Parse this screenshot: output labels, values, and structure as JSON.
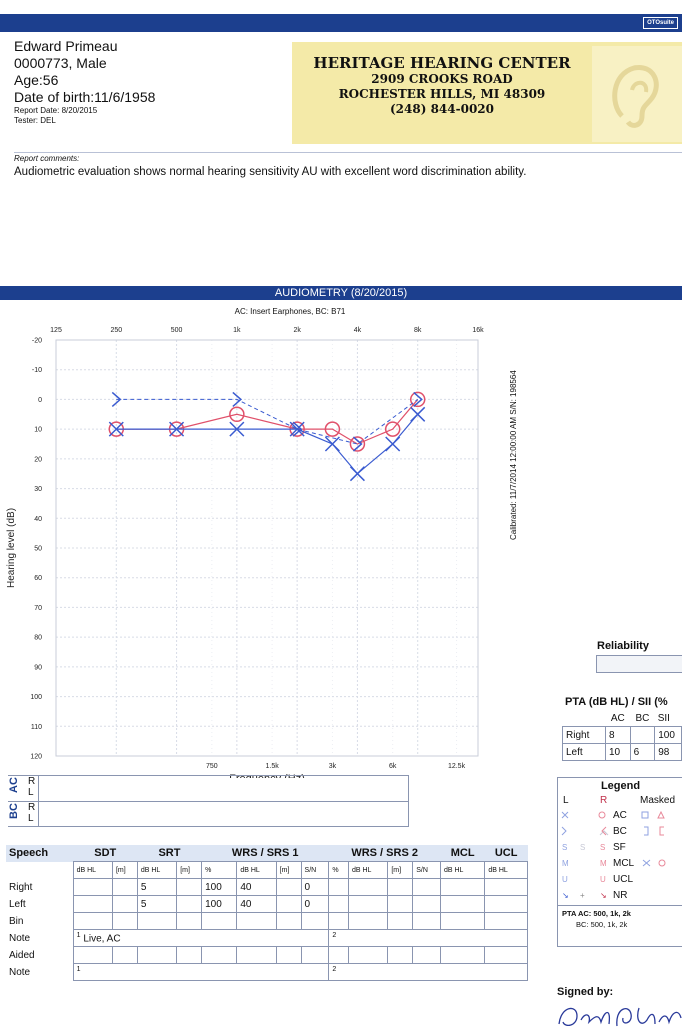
{
  "header": {
    "logo_text": "OTOsuite"
  },
  "patient": {
    "name": "Edward Primeau",
    "id_gender": "0000773, Male",
    "age": "Age:56",
    "dob": "Date of birth:11/6/1958",
    "report_date": "Report Date: 8/20/2015",
    "tester": "Tester: DEL"
  },
  "clinic": {
    "name": "HERITAGE HEARING CENTER",
    "street": "2909 CROOKS ROAD",
    "city": "ROCHESTER HILLS, MI 48309",
    "phone": "(248) 844-0020"
  },
  "comments": {
    "label": "Report comments:",
    "text": "Audiometric evaluation shows normal hearing sensitivity AU with excellent word discrimination ability."
  },
  "audiometry": {
    "title": "AUDIOMETRY  (8/20/2015)",
    "transducer": "AC: Insert Earphones, BC: B71",
    "calibrated": "Calibrated: 11/7/2014 12:00:00 AM  S/N: 198564"
  },
  "chart_data": {
    "type": "line",
    "xlabel": "Frequency (Hz)",
    "ylabel": "Hearing level (dB)",
    "x_ticks_top": [
      "125",
      "250",
      "500",
      "1k",
      "2k",
      "4k",
      "8k",
      "16k"
    ],
    "x_ticks_bottom": [
      "750",
      "1.5k",
      "3k",
      "6k",
      "12.5k"
    ],
    "y_ticks": [
      "-20",
      "-10",
      "0",
      "10",
      "20",
      "30",
      "40",
      "50",
      "60",
      "70",
      "80",
      "90",
      "100",
      "110",
      "120"
    ],
    "ylim": [
      -20,
      120
    ],
    "grid": true,
    "series": [
      {
        "name": "Right AC",
        "marker": "circle",
        "color": "#e0506a",
        "points": [
          [
            250,
            10
          ],
          [
            500,
            10
          ],
          [
            1000,
            5
          ],
          [
            2000,
            10
          ],
          [
            3000,
            10
          ],
          [
            4000,
            15
          ],
          [
            6000,
            10
          ],
          [
            8000,
            0
          ]
        ]
      },
      {
        "name": "Left AC",
        "marker": "cross",
        "color": "#3a5bd0",
        "points": [
          [
            250,
            10
          ],
          [
            500,
            10
          ],
          [
            1000,
            10
          ],
          [
            2000,
            10
          ],
          [
            3000,
            15
          ],
          [
            4000,
            25
          ],
          [
            6000,
            15
          ],
          [
            8000,
            5
          ]
        ]
      },
      {
        "name": "Left BC",
        "marker": "bracket",
        "color": "#3a5bd0",
        "points": [
          [
            250,
            0
          ],
          [
            1000,
            0
          ],
          [
            2000,
            10
          ],
          [
            4000,
            15
          ],
          [
            8000,
            0
          ]
        ]
      }
    ]
  },
  "acbc": {
    "ac": "AC",
    "bc": "BC",
    "r": "R",
    "l": "L"
  },
  "speech": {
    "headers": [
      "Speech",
      "SDT",
      "SRT",
      "WRS / SRS 1",
      "WRS / SRS 2",
      "MCL",
      "UCL"
    ],
    "subheaders": [
      "dB HL",
      "[m]",
      "dB HL",
      "[m]",
      "%",
      "dB HL",
      "[m]",
      "S/N",
      "%",
      "dB HL",
      "[m]",
      "S/N",
      "dB HL",
      "dB HL"
    ],
    "rows": [
      {
        "label": "Right",
        "srt": "5",
        "wrs_pct": "100",
        "wrs_db": "40",
        "wrs_sn": "0"
      },
      {
        "label": "Left",
        "srt": "5",
        "wrs_pct": "100",
        "wrs_db": "40",
        "wrs_sn": "0"
      },
      {
        "label": "Bin"
      }
    ],
    "note1_label": "Note",
    "note1_a": "Live, AC",
    "sup1": "1",
    "sup2": "2",
    "aided_label": "Aided",
    "note2_label": "Note"
  },
  "reliability": {
    "label": "Reliability"
  },
  "pta": {
    "title": "PTA (dB HL) / SII (%",
    "cols": [
      "AC",
      "BC",
      "SII"
    ],
    "right": {
      "label": "Right",
      "ac": "8",
      "bc": "",
      "sii": "100"
    },
    "left": {
      "label": "Left",
      "ac": "10",
      "bc": "6",
      "sii": "98"
    }
  },
  "legend": {
    "title": "Legend",
    "col_l": "L",
    "col_r": "R",
    "col_masked": "Masked",
    "rows": [
      "AC",
      "BC",
      "SF",
      "MCL",
      "UCL",
      "NR"
    ],
    "pta_ac": "PTA  AC: 500, 1k, 2k",
    "pta_bc": "BC: 500, 1k, 2k"
  },
  "signed": {
    "label": "Signed by:"
  }
}
